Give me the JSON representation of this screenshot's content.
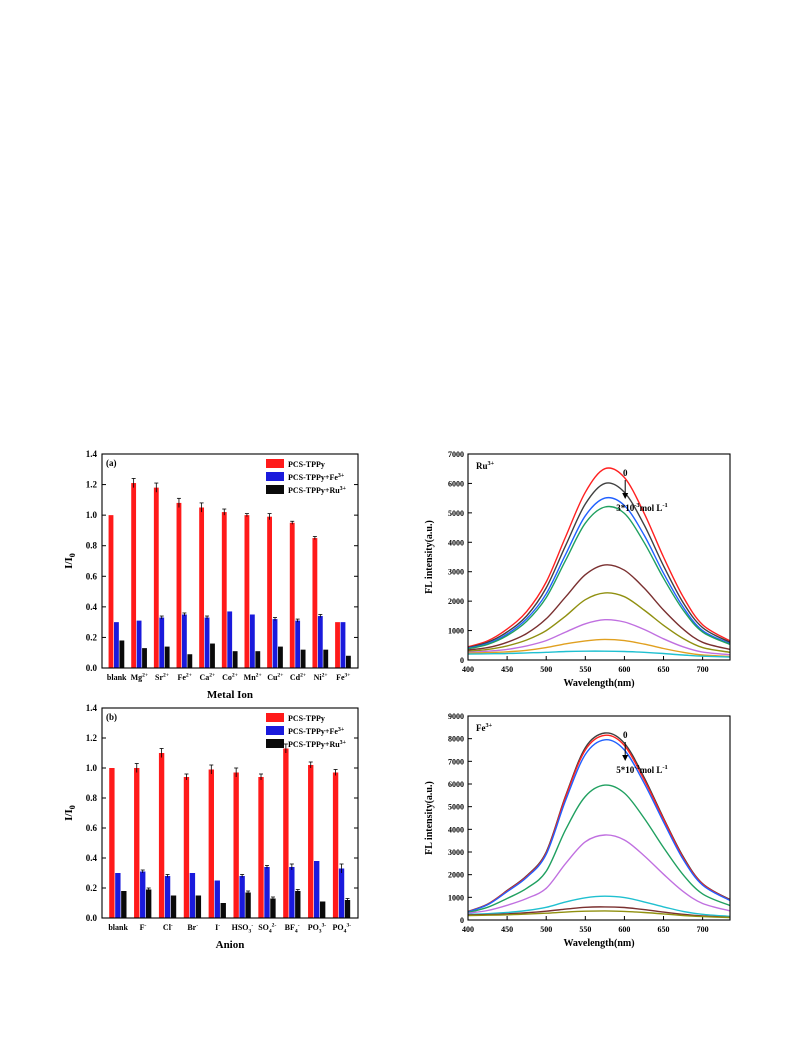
{
  "chart_data": [
    {
      "type": "bar",
      "panel": "a",
      "panel_label": "(a)",
      "xlabel": "Metal Ion",
      "ylabel": "I/I0",
      "ylim": [
        0,
        1.4
      ],
      "yticks": [
        "0.0",
        "0.2",
        "0.4",
        "0.6",
        "0.8",
        "1.0",
        "1.2",
        "1.4"
      ],
      "categories": [
        {
          "base": "blank",
          "sup": ""
        },
        {
          "base": "Mg",
          "sup": "2+"
        },
        {
          "base": "Sr",
          "sup": "2+"
        },
        {
          "base": "Fe",
          "sup": "2+"
        },
        {
          "base": "Ca",
          "sup": "2+"
        },
        {
          "base": "Co",
          "sup": "2+"
        },
        {
          "base": "Mn",
          "sup": "2+"
        },
        {
          "base": "Cu",
          "sup": "2+"
        },
        {
          "base": "Cd",
          "sup": "2+"
        },
        {
          "base": "Ni",
          "sup": "2+"
        },
        {
          "base": "Fe",
          "sup": "3+"
        }
      ],
      "legend_position": "top-right",
      "series": [
        {
          "name": "PCS-TPPy",
          "color": "#ff1a1a",
          "values": [
            1.0,
            1.21,
            1.18,
            1.08,
            1.05,
            1.02,
            1.0,
            0.99,
            0.95,
            0.85,
            0.3
          ],
          "errors": [
            0.0,
            0.03,
            0.03,
            0.03,
            0.03,
            0.02,
            0.01,
            0.02,
            0.01,
            0.01,
            0.0
          ]
        },
        {
          "name": "PCS-TPPy+Fe",
          "name_sup": "3+",
          "color": "#1a1adc",
          "values": [
            0.3,
            0.31,
            0.33,
            0.35,
            0.33,
            0.37,
            0.35,
            0.32,
            0.31,
            0.34,
            0.3
          ],
          "errors": [
            0.0,
            0.0,
            0.01,
            0.01,
            0.01,
            0.0,
            0.0,
            0.01,
            0.01,
            0.01,
            0.0
          ]
        },
        {
          "name": "PCS-TPPy+Ru",
          "name_sup": "3+",
          "color": "#0a0a0a",
          "values": [
            0.18,
            0.13,
            0.14,
            0.09,
            0.16,
            0.11,
            0.11,
            0.14,
            0.12,
            0.12,
            0.08
          ],
          "errors": [
            0.0,
            0.0,
            0.0,
            0.0,
            0.0,
            0.0,
            0.0,
            0.0,
            0.0,
            0.0,
            0.0
          ]
        }
      ]
    },
    {
      "type": "bar",
      "panel": "b",
      "panel_label": "(b)",
      "xlabel": "Anion",
      "ylabel": "I/I0",
      "ylim": [
        0,
        1.4
      ],
      "yticks": [
        "0.0",
        "0.2",
        "0.4",
        "0.6",
        "0.8",
        "1.0",
        "1.2",
        "1.4"
      ],
      "categories": [
        {
          "base": "blank",
          "sup": ""
        },
        {
          "base": "F",
          "sup": "-"
        },
        {
          "base": "Cl",
          "sup": "-"
        },
        {
          "base": "Br",
          "sup": "-"
        },
        {
          "base": "I",
          "sup": "-"
        },
        {
          "base": "HSO",
          "sub": "3",
          "sup": "-"
        },
        {
          "base": "SO",
          "sub": "4",
          "sup": "2-"
        },
        {
          "base": "BF",
          "sub": "4",
          "sup": "-"
        },
        {
          "base": "PO",
          "sub": "3",
          "sup": "3-"
        },
        {
          "base": "PO",
          "sub": "4",
          "sup": "3-"
        }
      ],
      "legend_position": "top-right",
      "series": [
        {
          "name": "PCS-TPPy",
          "color": "#ff1a1a",
          "values": [
            1.0,
            1.0,
            1.1,
            0.94,
            0.99,
            0.97,
            0.94,
            1.13,
            1.02,
            0.97
          ],
          "errors": [
            0.0,
            0.03,
            0.03,
            0.02,
            0.03,
            0.03,
            0.02,
            0.03,
            0.02,
            0.02
          ]
        },
        {
          "name": "PCS-TPPy+Fe",
          "name_sup": "3+",
          "color": "#1a1adc",
          "values": [
            0.3,
            0.31,
            0.28,
            0.3,
            0.25,
            0.28,
            0.34,
            0.34,
            0.38,
            0.33
          ],
          "errors": [
            0.0,
            0.01,
            0.01,
            0.0,
            0.0,
            0.01,
            0.01,
            0.02,
            0.0,
            0.03
          ]
        },
        {
          "name": "PCS-TPPy+Ru",
          "name_sup": "3+",
          "color": "#0a0a0a",
          "values": [
            0.18,
            0.19,
            0.15,
            0.15,
            0.1,
            0.17,
            0.13,
            0.18,
            0.11,
            0.12
          ],
          "errors": [
            0.0,
            0.01,
            0.0,
            0.0,
            0.0,
            0.01,
            0.01,
            0.01,
            0.0,
            0.01
          ]
        }
      ]
    },
    {
      "type": "line",
      "panel": "c",
      "annotation_ion": {
        "base": "Ru",
        "sup": "3+"
      },
      "arrow_top_label": "0",
      "arrow_bottom_label": {
        "pre": "3*10",
        "sup": "-3",
        "post": "mol L",
        "sup2": "-1"
      },
      "xlabel": "Wavelength(nm)",
      "ylabel": "FL intensity(a.u.)",
      "xlim": [
        400,
        735
      ],
      "ylim": [
        0,
        7000
      ],
      "xticks": [
        400,
        450,
        500,
        550,
        600,
        650,
        700
      ],
      "yticks": [
        0,
        1000,
        2000,
        3000,
        4000,
        5000,
        6000,
        7000
      ],
      "x": [
        400,
        425,
        450,
        475,
        500,
        525,
        550,
        575,
        600,
        625,
        650,
        675,
        700,
        735
      ],
      "series": [
        {
          "color": "#ff2020",
          "values": [
            450,
            650,
            1050,
            1650,
            2650,
            4200,
            5700,
            6500,
            6200,
            5000,
            3500,
            2150,
            1200,
            650
          ]
        },
        {
          "color": "#404040",
          "values": [
            420,
            600,
            950,
            1500,
            2450,
            3900,
            5300,
            6000,
            5700,
            4600,
            3200,
            1950,
            1100,
            600
          ]
        },
        {
          "color": "#2060ff",
          "values": [
            400,
            560,
            880,
            1400,
            2250,
            3600,
            4900,
            5500,
            5250,
            4250,
            2950,
            1800,
            1000,
            560
          ]
        },
        {
          "color": "#20a060",
          "values": [
            380,
            530,
            830,
            1320,
            2120,
            3400,
            4650,
            5200,
            4980,
            4000,
            2780,
            1700,
            950,
            530
          ]
        },
        {
          "color": "#7a3030",
          "values": [
            340,
            420,
            600,
            900,
            1400,
            2150,
            2900,
            3230,
            3050,
            2450,
            1700,
            1050,
            600,
            360
          ]
        },
        {
          "color": "#909010",
          "values": [
            300,
            360,
            480,
            680,
            1000,
            1500,
            2050,
            2280,
            2150,
            1700,
            1180,
            730,
            420,
            260
          ]
        },
        {
          "color": "#c070e0",
          "values": [
            260,
            300,
            360,
            480,
            660,
            950,
            1230,
            1370,
            1290,
            1040,
            720,
            450,
            270,
            180
          ]
        },
        {
          "color": "#e0a020",
          "values": [
            230,
            250,
            280,
            330,
            420,
            550,
            650,
            700,
            660,
            540,
            390,
            260,
            170,
            120
          ]
        },
        {
          "color": "#20c0d0",
          "values": [
            200,
            210,
            220,
            240,
            260,
            290,
            300,
            300,
            290,
            260,
            220,
            170,
            130,
            100
          ]
        }
      ]
    },
    {
      "type": "line",
      "panel": "d",
      "annotation_ion": {
        "base": "Fe",
        "sup": "3+"
      },
      "arrow_top_label": "0",
      "arrow_bottom_label": {
        "pre": "5*10",
        "sup": "-3",
        "post": "mol L",
        "sup2": "-1"
      },
      "xlabel": "Wavelength(nm)",
      "ylabel": "FL intensity(a.u.)",
      "xlim": [
        400,
        735
      ],
      "ylim": [
        0,
        9000
      ],
      "xticks": [
        400,
        450,
        500,
        550,
        600,
        650,
        700
      ],
      "yticks": [
        0,
        1000,
        2000,
        3000,
        4000,
        5000,
        6000,
        7000,
        8000,
        9000
      ],
      "x": [
        400,
        425,
        450,
        475,
        500,
        525,
        550,
        575,
        600,
        625,
        650,
        675,
        700,
        735
      ],
      "series": [
        {
          "color": "#404040",
          "values": [
            380,
            700,
            1300,
            1950,
            3000,
            5500,
            7600,
            8250,
            7800,
            6300,
            4500,
            2800,
            1600,
            900
          ]
        },
        {
          "color": "#ff2020",
          "values": [
            370,
            690,
            1280,
            1920,
            2950,
            5450,
            7500,
            8150,
            7700,
            6200,
            4450,
            2750,
            1580,
            880
          ]
        },
        {
          "color": "#2060ff",
          "values": [
            360,
            670,
            1250,
            1880,
            2900,
            5300,
            7300,
            7950,
            7500,
            6050,
            4330,
            2680,
            1540,
            860
          ]
        },
        {
          "color": "#20a060",
          "values": [
            330,
            560,
            950,
            1400,
            2150,
            4000,
            5450,
            5950,
            5600,
            4500,
            3200,
            2000,
            1150,
            640
          ]
        },
        {
          "color": "#c070e0",
          "values": [
            300,
            420,
            650,
            950,
            1400,
            2500,
            3450,
            3750,
            3530,
            2840,
            2020,
            1260,
            730,
            400
          ]
        },
        {
          "color": "#20c0d0",
          "values": [
            250,
            280,
            330,
            420,
            560,
            800,
            980,
            1050,
            990,
            800,
            580,
            380,
            250,
            160
          ]
        },
        {
          "color": "#7a3030",
          "values": [
            220,
            240,
            270,
            320,
            390,
            480,
            560,
            580,
            550,
            460,
            350,
            250,
            180,
            120
          ]
        },
        {
          "color": "#909010",
          "values": [
            200,
            210,
            230,
            260,
            300,
            350,
            390,
            400,
            380,
            330,
            270,
            200,
            150,
            110
          ]
        }
      ]
    }
  ]
}
